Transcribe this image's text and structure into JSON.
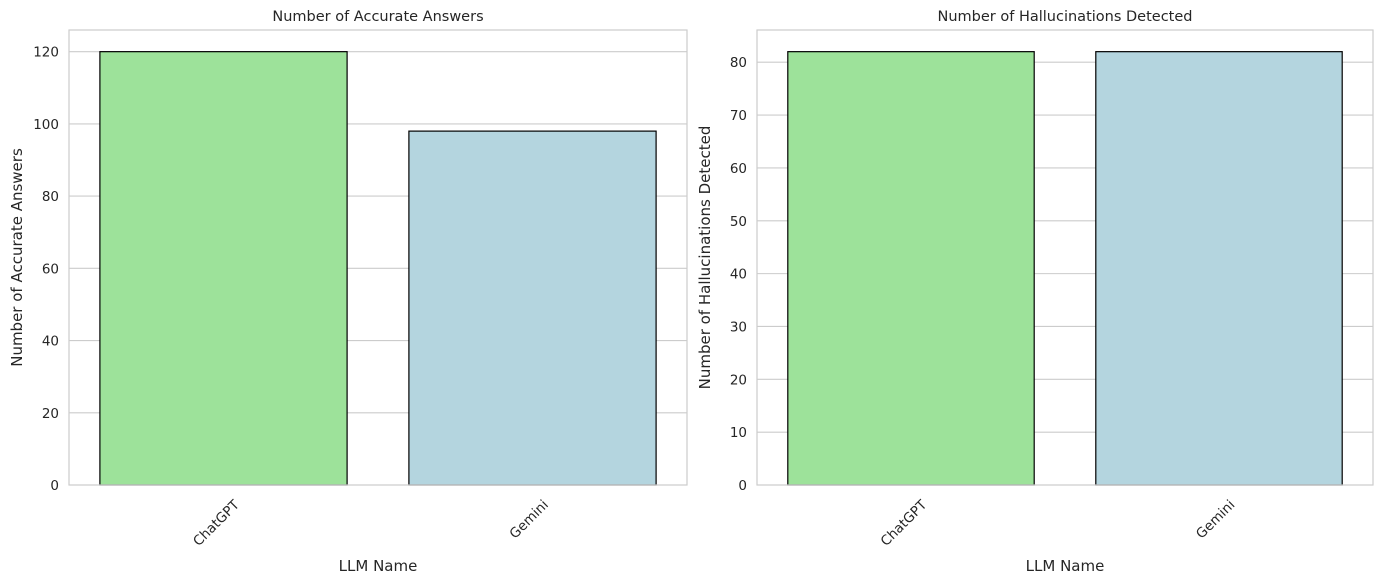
{
  "chart_data": [
    {
      "type": "bar",
      "title": "Number of Accurate Answers",
      "xlabel": "LLM Name",
      "ylabel": "Number of Accurate Answers",
      "categories": [
        "ChatGPT",
        "Gemini"
      ],
      "values": [
        120,
        98
      ],
      "colors": [
        "#9de29a",
        "#b4d5df"
      ],
      "ylim": [
        0,
        126
      ],
      "yticks": [
        0,
        20,
        40,
        60,
        80,
        100,
        120
      ],
      "grid": "y",
      "xtick_rotation": 45
    },
    {
      "type": "bar",
      "title": "Number of Hallucinations Detected",
      "xlabel": "LLM Name",
      "ylabel": "Number of Hallucinations Detected",
      "categories": [
        "ChatGPT",
        "Gemini"
      ],
      "values": [
        82,
        82
      ],
      "colors": [
        "#9de29a",
        "#b4d5df"
      ],
      "ylim": [
        0,
        86.1
      ],
      "yticks": [
        0,
        10,
        20,
        30,
        40,
        50,
        60,
        70,
        80
      ],
      "grid": "y",
      "xtick_rotation": 45
    }
  ]
}
